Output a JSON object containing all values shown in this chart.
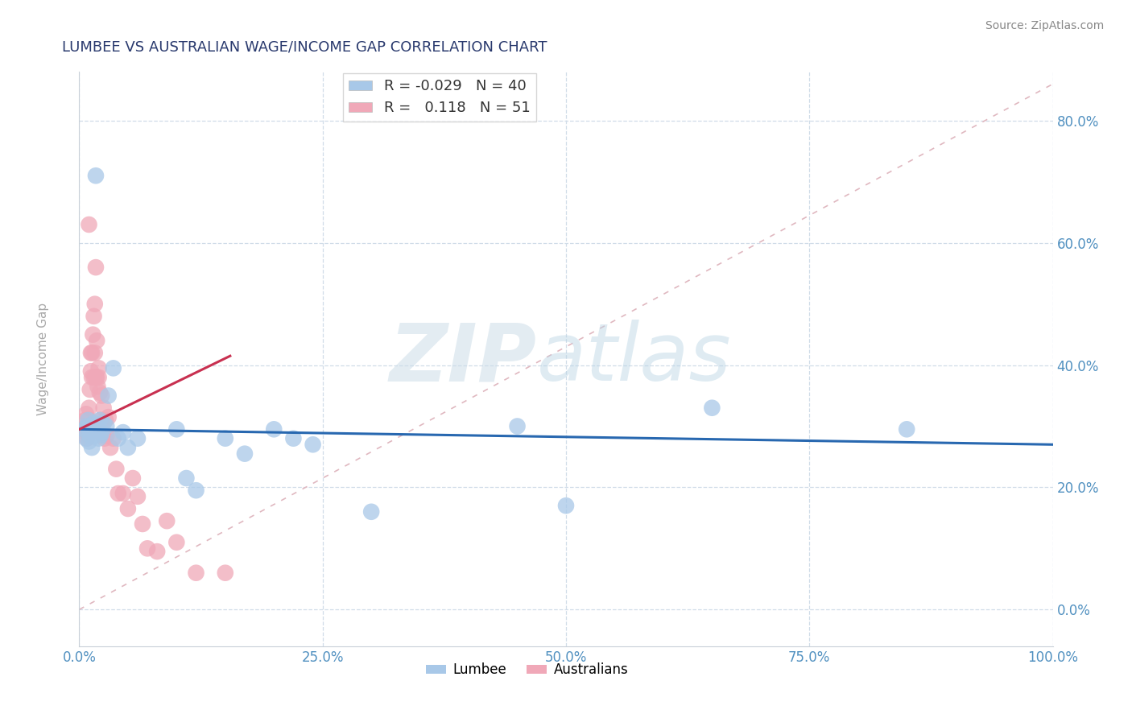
{
  "title": "LUMBEE VS AUSTRALIAN WAGE/INCOME GAP CORRELATION CHART",
  "source": "Source: ZipAtlas.com",
  "ylabel": "Wage/Income Gap",
  "xlim": [
    0,
    1.0
  ],
  "ylim": [
    -0.06,
    0.88
  ],
  "xticks": [
    0.0,
    0.25,
    0.5,
    0.75,
    1.0
  ],
  "yticks": [
    0.0,
    0.2,
    0.4,
    0.6,
    0.8
  ],
  "lumbee_R": -0.029,
  "lumbee_N": 40,
  "australian_R": 0.118,
  "australian_N": 51,
  "lumbee_color": "#a8c8e8",
  "australian_color": "#f0a8b8",
  "lumbee_line_color": "#2868b0",
  "australian_line_color": "#c83050",
  "ref_line_color": "#e0b8c0",
  "grid_color": "#d0dce8",
  "title_color": "#2a3a6e",
  "tick_color": "#5090c0",
  "lumbee_x": [
    0.005,
    0.007,
    0.008,
    0.009,
    0.01,
    0.01,
    0.011,
    0.012,
    0.013,
    0.015,
    0.016,
    0.017,
    0.018,
    0.019,
    0.02,
    0.02,
    0.021,
    0.022,
    0.023,
    0.025,
    0.028,
    0.03,
    0.035,
    0.04,
    0.045,
    0.05,
    0.06,
    0.1,
    0.11,
    0.12,
    0.15,
    0.17,
    0.2,
    0.22,
    0.24,
    0.3,
    0.45,
    0.5,
    0.65,
    0.85
  ],
  "lumbee_y": [
    0.295,
    0.28,
    0.3,
    0.31,
    0.295,
    0.275,
    0.285,
    0.29,
    0.265,
    0.305,
    0.285,
    0.71,
    0.3,
    0.29,
    0.295,
    0.28,
    0.31,
    0.285,
    0.29,
    0.305,
    0.3,
    0.35,
    0.395,
    0.28,
    0.29,
    0.265,
    0.28,
    0.295,
    0.215,
    0.195,
    0.28,
    0.255,
    0.295,
    0.28,
    0.27,
    0.16,
    0.3,
    0.17,
    0.33,
    0.295
  ],
  "australian_x": [
    0.005,
    0.006,
    0.007,
    0.008,
    0.008,
    0.009,
    0.01,
    0.01,
    0.011,
    0.011,
    0.012,
    0.012,
    0.013,
    0.013,
    0.014,
    0.015,
    0.015,
    0.016,
    0.016,
    0.017,
    0.017,
    0.018,
    0.018,
    0.019,
    0.02,
    0.02,
    0.021,
    0.022,
    0.023,
    0.024,
    0.025,
    0.026,
    0.027,
    0.028,
    0.03,
    0.032,
    0.035,
    0.038,
    0.04,
    0.045,
    0.05,
    0.055,
    0.06,
    0.065,
    0.07,
    0.08,
    0.09,
    0.1,
    0.12,
    0.15,
    0.01
  ],
  "australian_y": [
    0.295,
    0.31,
    0.32,
    0.28,
    0.3,
    0.285,
    0.33,
    0.31,
    0.36,
    0.3,
    0.39,
    0.42,
    0.38,
    0.42,
    0.45,
    0.48,
    0.38,
    0.5,
    0.42,
    0.56,
    0.38,
    0.44,
    0.38,
    0.365,
    0.395,
    0.38,
    0.355,
    0.31,
    0.35,
    0.285,
    0.33,
    0.28,
    0.31,
    0.285,
    0.315,
    0.265,
    0.28,
    0.23,
    0.19,
    0.19,
    0.165,
    0.215,
    0.185,
    0.14,
    0.1,
    0.095,
    0.145,
    0.11,
    0.06,
    0.06,
    0.63
  ]
}
